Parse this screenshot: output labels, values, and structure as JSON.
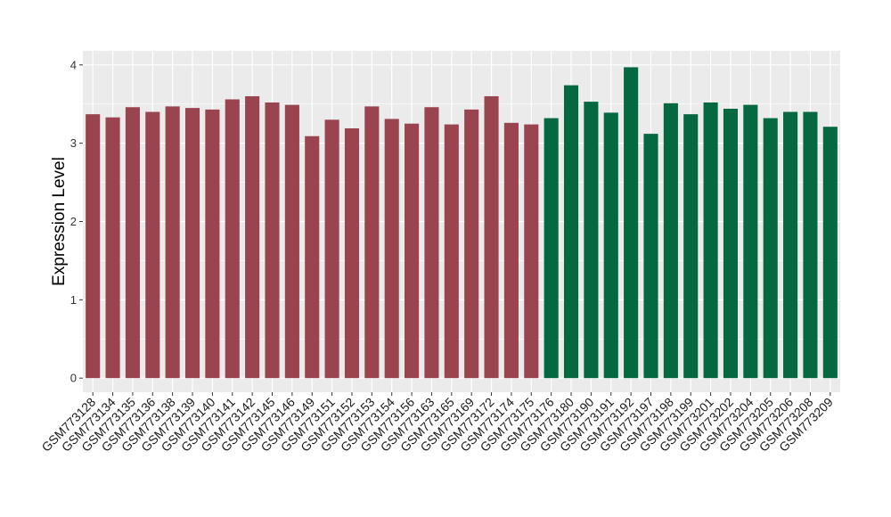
{
  "chart_data": {
    "type": "bar",
    "ylabel": "Expression Level",
    "xlabel": "",
    "ylim": [
      -0.18,
      4.18
    ],
    "yticks": [
      0,
      1,
      2,
      3,
      4
    ],
    "grid": true,
    "categories": [
      "GSM773128",
      "GSM773134",
      "GSM773135",
      "GSM773136",
      "GSM773138",
      "GSM773139",
      "GSM773140",
      "GSM773141",
      "GSM773142",
      "GSM773145",
      "GSM773146",
      "GSM773149",
      "GSM773151",
      "GSM773152",
      "GSM773153",
      "GSM773154",
      "GSM773156",
      "GSM773163",
      "GSM773165",
      "GSM773169",
      "GSM773172",
      "GSM773174",
      "GSM773175",
      "GSM773176",
      "GSM773180",
      "GSM773190",
      "GSM773191",
      "GSM773192",
      "GSM773197",
      "GSM773198",
      "GSM773199",
      "GSM773201",
      "GSM773202",
      "GSM773204",
      "GSM773205",
      "GSM773206",
      "GSM773208",
      "GSM773209"
    ],
    "values": [
      3.37,
      3.33,
      3.46,
      3.4,
      3.47,
      3.45,
      3.43,
      3.56,
      3.6,
      3.52,
      3.49,
      3.09,
      3.3,
      3.19,
      3.47,
      3.31,
      3.25,
      3.46,
      3.24,
      3.43,
      3.6,
      3.26,
      3.24,
      3.32,
      3.74,
      3.53,
      3.39,
      3.97,
      3.12,
      3.51,
      3.37,
      3.52,
      3.44,
      3.49,
      3.32,
      3.4,
      3.4,
      3.21
    ],
    "groups": [
      0,
      0,
      0,
      0,
      0,
      0,
      0,
      0,
      0,
      0,
      0,
      0,
      0,
      0,
      0,
      0,
      0,
      0,
      0,
      0,
      0,
      0,
      0,
      1,
      1,
      1,
      1,
      1,
      1,
      1,
      1,
      1,
      1,
      1,
      1,
      1,
      1,
      1
    ],
    "colors": {
      "group_0": "#9a4450",
      "group_1": "#046841",
      "panel": "#ebebeb",
      "grid": "#ffffff"
    }
  }
}
